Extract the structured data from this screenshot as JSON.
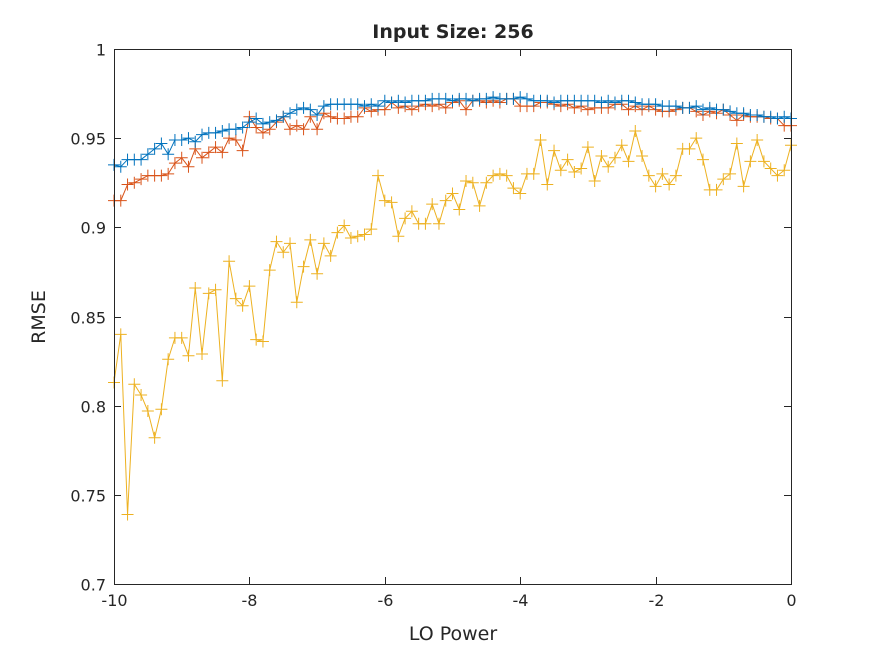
{
  "chart_data": {
    "type": "line",
    "title": "Input Size: 256",
    "xlabel": "LO Power",
    "ylabel": "RMSE",
    "xlim": [
      -10,
      0
    ],
    "ylim": [
      0.7,
      1
    ],
    "xticks": [
      -10,
      -8,
      -6,
      -4,
      -2,
      0
    ],
    "xtick_labels": [
      "-10",
      "-8",
      "-6",
      "-4",
      "-2",
      "0"
    ],
    "yticks": [
      0.7,
      0.75,
      0.8,
      0.85,
      0.9,
      0.95,
      1
    ],
    "ytick_labels": [
      "0.7",
      "0.75",
      "0.8",
      "0.85",
      "0.9",
      "0.95",
      "1"
    ],
    "grid": false,
    "legend": null,
    "marker": "+",
    "x": [
      -10,
      -9.9,
      -9.8,
      -9.7,
      -9.6,
      -9.5,
      -9.4,
      -9.3,
      -9.2,
      -9.1,
      -9.0,
      -8.9,
      -8.8,
      -8.7,
      -8.6,
      -8.5,
      -8.4,
      -8.3,
      -8.2,
      -8.1,
      -8.0,
      -7.9,
      -7.8,
      -7.7,
      -7.6,
      -7.5,
      -7.4,
      -7.3,
      -7.2,
      -7.1,
      -7.0,
      -6.9,
      -6.8,
      -6.7,
      -6.6,
      -6.5,
      -6.4,
      -6.3,
      -6.2,
      -6.1,
      -6.0,
      -5.9,
      -5.8,
      -5.7,
      -5.6,
      -5.5,
      -5.4,
      -5.3,
      -5.2,
      -5.1,
      -5.0,
      -4.9,
      -4.8,
      -4.7,
      -4.6,
      -4.5,
      -4.4,
      -4.3,
      -4.2,
      -4.1,
      -4.0,
      -3.9,
      -3.8,
      -3.7,
      -3.6,
      -3.5,
      -3.4,
      -3.3,
      -3.2,
      -3.1,
      -3.0,
      -2.9,
      -2.8,
      -2.7,
      -2.6,
      -2.5,
      -2.4,
      -2.3,
      -2.2,
      -2.1,
      -2.0,
      -1.9,
      -1.8,
      -1.7,
      -1.6,
      -1.5,
      -1.4,
      -1.3,
      -1.2,
      -1.1,
      -1.0,
      -0.9,
      -0.8,
      -0.7,
      -0.6,
      -0.5,
      -0.4,
      -0.3,
      -0.2,
      -0.1,
      0.0
    ],
    "series": [
      {
        "color": "#0072BD",
        "values": [
          0.935,
          0.934,
          0.938,
          0.938,
          0.938,
          0.941,
          0.944,
          0.947,
          0.941,
          0.949,
          0.949,
          0.95,
          0.948,
          0.952,
          0.953,
          0.953,
          0.954,
          0.955,
          0.955,
          0.956,
          0.959,
          0.961,
          0.958,
          0.959,
          0.96,
          0.962,
          0.964,
          0.966,
          0.967,
          0.966,
          0.963,
          0.968,
          0.969,
          0.969,
          0.969,
          0.969,
          0.969,
          0.968,
          0.969,
          0.968,
          0.971,
          0.97,
          0.971,
          0.97,
          0.971,
          0.971,
          0.971,
          0.972,
          0.972,
          0.972,
          0.971,
          0.972,
          0.972,
          0.971,
          0.972,
          0.972,
          0.973,
          0.972,
          0.972,
          0.972,
          0.973,
          0.972,
          0.971,
          0.971,
          0.971,
          0.97,
          0.971,
          0.971,
          0.971,
          0.971,
          0.971,
          0.971,
          0.97,
          0.971,
          0.97,
          0.971,
          0.971,
          0.97,
          0.969,
          0.969,
          0.969,
          0.968,
          0.968,
          0.968,
          0.967,
          0.967,
          0.968,
          0.966,
          0.967,
          0.966,
          0.966,
          0.965,
          0.964,
          0.964,
          0.963,
          0.963,
          0.962,
          0.962,
          0.961,
          0.962,
          0.961
        ]
      },
      {
        "color": "#D95319",
        "values": [
          0.915,
          0.915,
          0.924,
          0.925,
          0.927,
          0.929,
          0.929,
          0.929,
          0.93,
          0.936,
          0.939,
          0.934,
          0.944,
          0.939,
          0.942,
          0.945,
          0.942,
          0.95,
          0.949,
          0.943,
          0.962,
          0.956,
          0.953,
          0.955,
          0.959,
          0.962,
          0.955,
          0.957,
          0.955,
          0.962,
          0.955,
          0.964,
          0.962,
          0.961,
          0.961,
          0.962,
          0.962,
          0.967,
          0.965,
          0.966,
          0.966,
          0.97,
          0.967,
          0.968,
          0.966,
          0.968,
          0.969,
          0.968,
          0.969,
          0.967,
          0.97,
          0.971,
          0.966,
          0.971,
          0.971,
          0.97,
          0.971,
          0.97,
          0.972,
          0.972,
          0.968,
          0.968,
          0.968,
          0.97,
          0.97,
          0.969,
          0.968,
          0.969,
          0.967,
          0.968,
          0.966,
          0.967,
          0.967,
          0.967,
          0.969,
          0.969,
          0.966,
          0.968,
          0.966,
          0.968,
          0.966,
          0.965,
          0.965,
          0.966,
          0.967,
          0.967,
          0.965,
          0.963,
          0.965,
          0.964,
          0.966,
          0.963,
          0.96,
          0.963,
          0.962,
          0.962,
          0.962,
          0.961,
          0.961,
          0.957,
          0.957
        ]
      },
      {
        "color": "#EDB120",
        "values": [
          0.813,
          0.84,
          0.739,
          0.812,
          0.806,
          0.797,
          0.782,
          0.798,
          0.826,
          0.838,
          0.838,
          0.828,
          0.866,
          0.829,
          0.863,
          0.865,
          0.814,
          0.881,
          0.86,
          0.856,
          0.867,
          0.837,
          0.836,
          0.876,
          0.892,
          0.886,
          0.891,
          0.858,
          0.878,
          0.893,
          0.874,
          0.891,
          0.884,
          0.897,
          0.901,
          0.894,
          0.895,
          0.896,
          0.899,
          0.929,
          0.915,
          0.914,
          0.895,
          0.905,
          0.909,
          0.902,
          0.902,
          0.913,
          0.902,
          0.915,
          0.919,
          0.91,
          0.926,
          0.925,
          0.912,
          0.925,
          0.929,
          0.93,
          0.929,
          0.922,
          0.919,
          0.93,
          0.93,
          0.949,
          0.924,
          0.943,
          0.932,
          0.938,
          0.931,
          0.933,
          0.945,
          0.926,
          0.94,
          0.934,
          0.939,
          0.946,
          0.937,
          0.954,
          0.94,
          0.929,
          0.923,
          0.93,
          0.924,
          0.929,
          0.944,
          0.944,
          0.95,
          0.938,
          0.921,
          0.921,
          0.927,
          0.93,
          0.947,
          0.923,
          0.937,
          0.949,
          0.937,
          0.933,
          0.929,
          0.932,
          0.946
        ]
      }
    ]
  }
}
